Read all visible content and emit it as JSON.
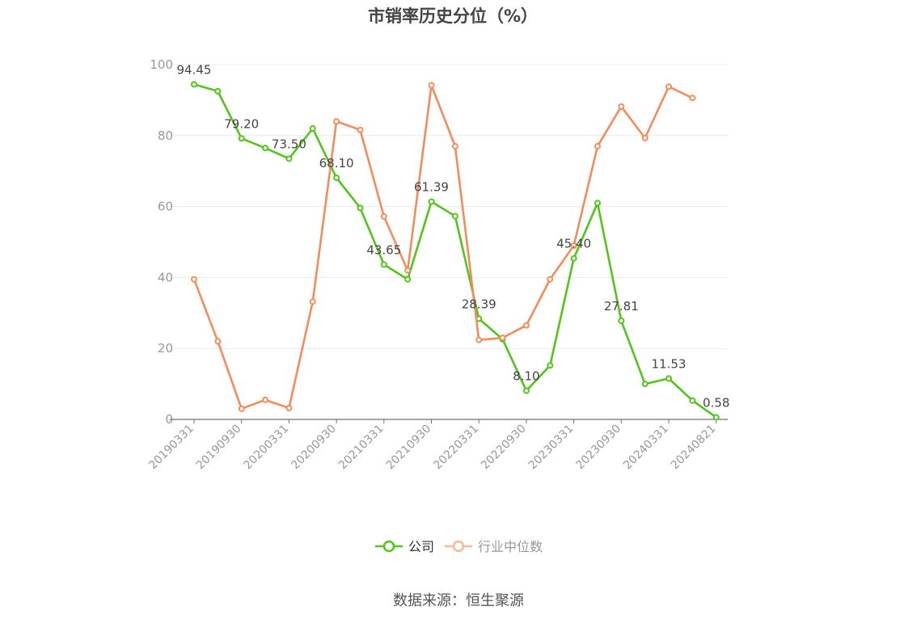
{
  "chart_data": {
    "type": "line",
    "title": "市销率历史分位（%）",
    "xlabel": "",
    "ylabel": "",
    "ylim": [
      0,
      100
    ],
    "yticks": [
      0,
      20,
      40,
      60,
      80,
      100
    ],
    "grid": true,
    "legend_position": "bottom",
    "x_tick_labels": [
      "20190331",
      "20190930",
      "20200331",
      "20200930",
      "20210331",
      "20210930",
      "20220331",
      "20220930",
      "20230331",
      "20230930",
      "20240331",
      "20240821"
    ],
    "series": [
      {
        "name": "公司",
        "color": "#52c41a",
        "values": [
          94.45,
          92.5,
          79.2,
          76.5,
          73.5,
          82.0,
          68.1,
          59.6,
          43.65,
          39.5,
          61.39,
          57.3,
          28.39,
          22.6,
          8.1,
          15.2,
          45.4,
          61.0,
          27.81,
          10.0,
          11.53,
          5.3,
          0.58
        ],
        "labels": [
          "94.45",
          "",
          "79.20",
          "",
          "73.50",
          "",
          "68.10",
          "",
          "43.65",
          "",
          "61.39",
          "",
          "28.39",
          "",
          "8.10",
          "",
          "45.40",
          "",
          "27.81",
          "",
          "11.53",
          "",
          "0.58"
        ]
      },
      {
        "name": "行业中位数",
        "color": "#f28c5c",
        "values": [
          39.5,
          22.0,
          3.0,
          5.5,
          3.2,
          33.2,
          84.0,
          81.6,
          57.2,
          42.0,
          94.2,
          77.0,
          22.4,
          23.0,
          26.5,
          39.5,
          49.0,
          77.0,
          88.2,
          79.3,
          93.8,
          90.6,
          null
        ],
        "labels": []
      }
    ]
  },
  "source_text": "数据来源：恒生聚源"
}
